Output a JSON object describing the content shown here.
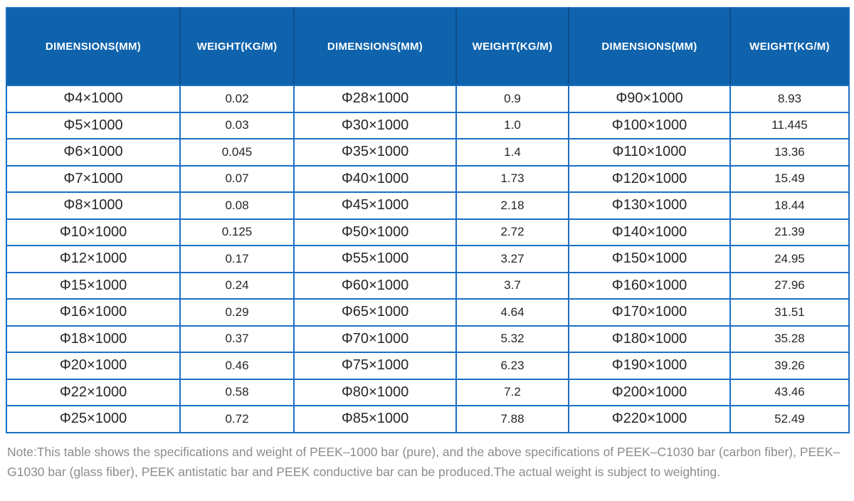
{
  "table": {
    "headers": [
      "DIMENSIONS(MM)",
      "WEIGHT(KG/M)",
      "DIMENSIONS(MM)",
      "WEIGHT(KG/M)",
      "DIMENSIONS(MM)",
      "WEIGHT(KG/M)"
    ],
    "rows": [
      [
        "Φ4×1000",
        "0.02",
        "Φ28×1000",
        "0.9",
        "Φ90×1000",
        "8.93"
      ],
      [
        "Φ5×1000",
        "0.03",
        "Φ30×1000",
        "1.0",
        "Φ100×1000",
        "11.445"
      ],
      [
        "Φ6×1000",
        "0.045",
        "Φ35×1000",
        "1.4",
        "Φ110×1000",
        "13.36"
      ],
      [
        "Φ7×1000",
        "0.07",
        "Φ40×1000",
        "1.73",
        "Φ120×1000",
        "15.49"
      ],
      [
        "Φ8×1000",
        "0.08",
        "Φ45×1000",
        "2.18",
        "Φ130×1000",
        "18.44"
      ],
      [
        "Φ10×1000",
        "0.125",
        "Φ50×1000",
        "2.72",
        "Φ140×1000",
        "21.39"
      ],
      [
        "Φ12×1000",
        "0.17",
        "Φ55×1000",
        "3.27",
        "Φ150×1000",
        "24.95"
      ],
      [
        "Φ15×1000",
        "0.24",
        "Φ60×1000",
        "3.7",
        "Φ160×1000",
        "27.96"
      ],
      [
        "Φ16×1000",
        "0.29",
        "Φ65×1000",
        "4.64",
        "Φ170×1000",
        "31.51"
      ],
      [
        "Φ18×1000",
        "0.37",
        "Φ70×1000",
        "5.32",
        "Φ180×1000",
        "35.28"
      ],
      [
        "Φ20×1000",
        "0.46",
        "Φ75×1000",
        "6.23",
        "Φ190×1000",
        "39.26"
      ],
      [
        "Φ22×1000",
        "0.58",
        "Φ80×1000",
        "7.2",
        "Φ200×1000",
        "43.46"
      ],
      [
        "Φ25×1000",
        "0.72",
        "Φ85×1000",
        "7.88",
        "Φ220×1000",
        "52.49"
      ]
    ]
  },
  "note": {
    "text": "Note:This table shows the specifications and weight of PEEK–1000 bar (pure), and the above specifications of PEEK–C1030 bar (carbon fiber), PEEK–G1030 bar (glass fiber), PEEK antistatic bar and PEEK conductive bar can be produced.The actual weight is subject to weighting."
  },
  "colors": {
    "header_bg": "#0f63ad",
    "header_divider": "#0d4f8c",
    "grid_border": "#1a6fc5",
    "cell_text": "#262626",
    "note_text": "#8c8c8c",
    "page_bg": "#ffffff"
  }
}
